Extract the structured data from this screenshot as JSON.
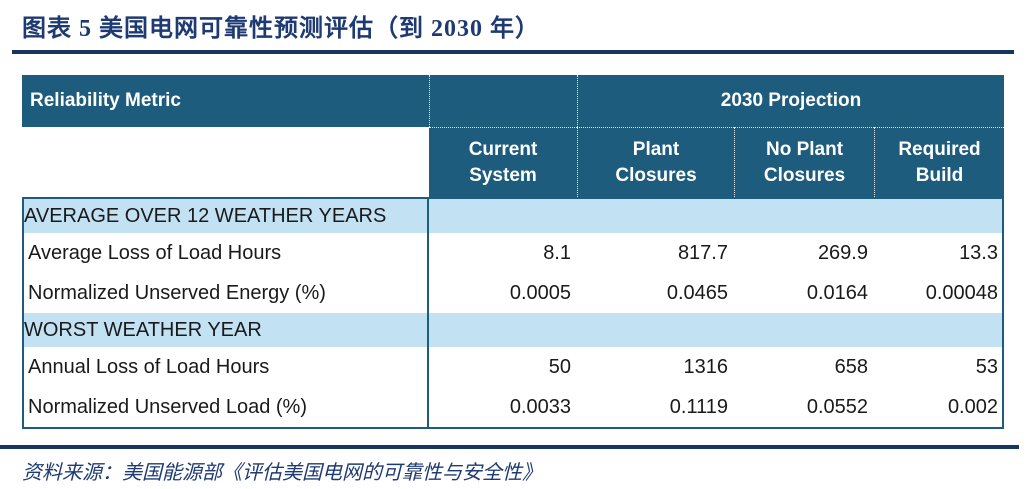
{
  "figure": {
    "title": "图表 5  美国电网可靠性预测评估（到 2030 年）",
    "source": "资料来源：美国能源部《评估美国电网的可靠性与安全性》"
  },
  "table": {
    "corner_header": "Reliability Metric",
    "group_header": "2030 Projection",
    "columns": [
      {
        "line1": "Current",
        "line2": "System"
      },
      {
        "line1": "Plant",
        "line2": "Closures"
      },
      {
        "line1": "No Plant",
        "line2": "Closures"
      },
      {
        "line1": "Required",
        "line2": "Build"
      }
    ],
    "sections": [
      {
        "header": "AVERAGE OVER 12 WEATHER YEARS",
        "rows": [
          {
            "label": "Average Loss of Load Hours",
            "values": [
              "8.1",
              "817.7",
              "269.9",
              "13.3"
            ]
          },
          {
            "label": "Normalized Unserved Energy (%)",
            "values": [
              "0.0005",
              "0.0465",
              "0.0164",
              "0.00048"
            ]
          }
        ]
      },
      {
        "header": "WORST WEATHER YEAR",
        "rows": [
          {
            "label": "Annual Loss of Load Hours",
            "values": [
              "50",
              "1316",
              "658",
              "53"
            ]
          },
          {
            "label": "Normalized Unserved Load (%)",
            "values": [
              "0.0033",
              "0.1119",
              "0.0552",
              "0.002"
            ]
          }
        ]
      }
    ]
  },
  "colors": {
    "header_bg": "#1E5C7D",
    "section_row_bg": "#C2E1F3",
    "title_text": "#1E3A72",
    "rule": "#17365D",
    "body_text": "#1A1A1A"
  }
}
